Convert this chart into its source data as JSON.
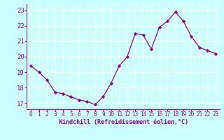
{
  "x": [
    0,
    1,
    2,
    3,
    4,
    5,
    6,
    7,
    8,
    9,
    10,
    11,
    12,
    13,
    14,
    15,
    16,
    17,
    18,
    19,
    20,
    21,
    22,
    23
  ],
  "y": [
    19.4,
    19.0,
    18.5,
    17.7,
    17.6,
    17.4,
    17.2,
    17.1,
    16.9,
    17.4,
    18.3,
    19.4,
    20.0,
    21.5,
    21.4,
    20.5,
    21.9,
    22.3,
    22.9,
    22.3,
    21.3,
    20.6,
    20.4,
    20.2
  ],
  "line_color": "#880088",
  "marker": "D",
  "marker_size": 2.2,
  "bg_color": "#ccffff",
  "grid_color": "#aadddd",
  "xlabel": "Windchill (Refroidissement éolien,°C)",
  "xlabel_color": "#880088",
  "tick_color": "#880088",
  "axis_color": "#880088",
  "ylim": [
    16.6,
    23.4
  ],
  "xlim": [
    -0.5,
    23.5
  ],
  "yticks": [
    17,
    18,
    19,
    20,
    21,
    22,
    23
  ],
  "xticks": [
    0,
    1,
    2,
    3,
    4,
    5,
    6,
    7,
    8,
    9,
    10,
    11,
    12,
    13,
    14,
    15,
    16,
    17,
    18,
    19,
    20,
    21,
    22,
    23
  ],
  "tick_fontsize": 5.5,
  "xlabel_fontsize": 6.0,
  "ytick_fontsize": 6.5
}
